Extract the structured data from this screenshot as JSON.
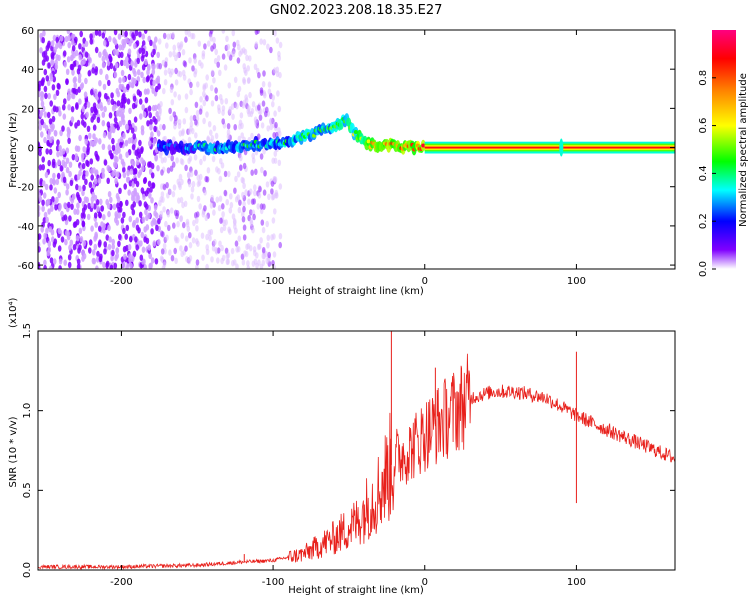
{
  "title": "GN02.2023.208.18.35.E27",
  "chart_data": [
    {
      "type": "heatmap",
      "xlabel": "Height of straight line (km)",
      "ylabel": "Frequency (Hz)",
      "xlim": [
        -255,
        165
      ],
      "ylim": [
        -62,
        60
      ],
      "x_ticks": [
        -200,
        -100,
        0,
        100
      ],
      "y_ticks": [
        -60,
        -40,
        -20,
        0,
        20,
        40,
        60
      ],
      "colorbar": {
        "label": "Normalized spectral amplitude",
        "range": [
          0,
          1
        ],
        "ticks": [
          "0.0",
          "0.2",
          "0.4",
          "0.6",
          "0.8"
        ],
        "colors": [
          "#ffffff",
          "#8000ff",
          "#0000ff",
          "#00ffff",
          "#00ff00",
          "#ffff00",
          "#ff8000",
          "#ff0000",
          "#ff0080"
        ]
      },
      "ridge": {
        "x": [
          -175,
          -160,
          -140,
          -120,
          -100,
          -85,
          -70,
          -58,
          -52,
          -45,
          -38,
          -30,
          -20,
          -10,
          0,
          165
        ],
        "freq_hz": [
          0,
          0,
          0,
          1,
          2,
          4,
          8,
          12,
          14,
          6,
          2,
          1,
          1,
          0,
          0,
          0
        ],
        "relative_amplitude": [
          0.15,
          0.2,
          0.3,
          0.35,
          0.35,
          0.4,
          0.45,
          0.45,
          0.5,
          0.55,
          0.7,
          0.8,
          0.85,
          0.85,
          0.95,
          0.95
        ]
      },
      "noise_regions": [
        {
          "x_range": [
            -255,
            -175
          ],
          "amplitude": "0.1-0.3"
        },
        {
          "x_range": [
            -175,
            -95
          ],
          "amplitude": "0.05-0.15"
        }
      ],
      "spike_x": 90
    },
    {
      "type": "line",
      "xlabel": "Height of straight line (km)",
      "ylabel": "SNR (10 * v/v)",
      "y_scale_label": "(x10⁴)",
      "xlim": [
        -255,
        165
      ],
      "ylim": [
        0,
        1.5
      ],
      "x_ticks": [
        -200,
        -100,
        0,
        100
      ],
      "y_ticks": [
        "0.0",
        "0.5",
        "1.0",
        "1.5"
      ],
      "series": [
        {
          "color": "#e8201b",
          "x": [
            -255,
            -200,
            -150,
            -120,
            -100,
            -80,
            -60,
            -45,
            -30,
            -20,
            -10,
            0,
            20,
            30,
            45,
            60,
            80,
            100,
            120,
            140,
            165
          ],
          "y": [
            0.02,
            0.02,
            0.03,
            0.05,
            0.06,
            0.1,
            0.2,
            0.3,
            0.5,
            0.7,
            0.75,
            0.85,
            1.0,
            1.08,
            1.12,
            1.12,
            1.08,
            0.97,
            0.88,
            0.8,
            0.7
          ],
          "spikes": [
            {
              "x": -22,
              "y": 1.5
            },
            {
              "x": 7,
              "y": 1.27
            },
            {
              "x": 100,
              "y": 1.37
            },
            {
              "x": 100,
              "y": 0.42
            },
            {
              "x": -119,
              "y": 0.1
            }
          ]
        }
      ]
    }
  ]
}
